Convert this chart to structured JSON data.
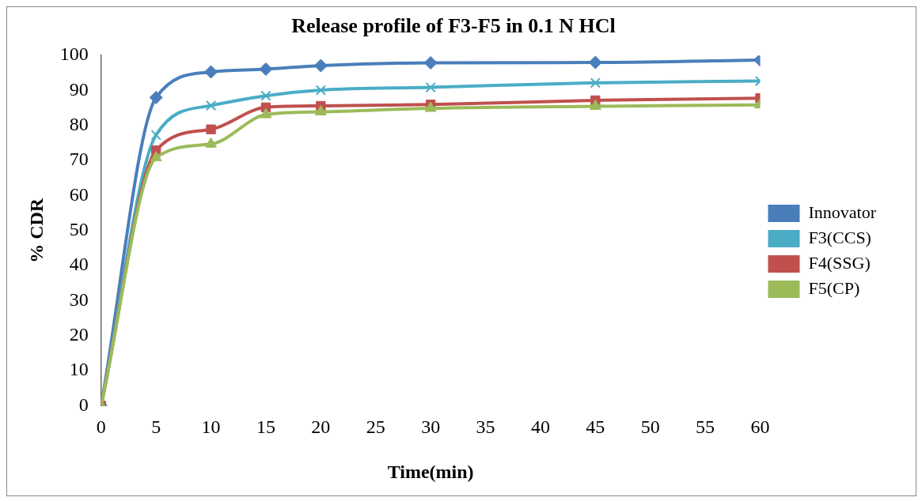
{
  "chart_data": {
    "type": "line",
    "title": "Release profile of F3-F5 in 0.1 N HCl",
    "xlabel": "Time(min)",
    "ylabel": "% CDR",
    "x": [
      0,
      5,
      10,
      15,
      20,
      30,
      45,
      60
    ],
    "series": [
      {
        "name": "Innovator",
        "color": "#4a7ebb",
        "marker": "diamond",
        "values": [
          0,
          88,
          95.3,
          96.1,
          97.1,
          97.9,
          98,
          98.7
        ]
      },
      {
        "name": "F3(CCS)",
        "color": "#4bacc6",
        "marker": "cross",
        "values": [
          0,
          77.3,
          85.7,
          88.5,
          90.1,
          90.9,
          92.2,
          92.7
        ]
      },
      {
        "name": "F4(SSG)",
        "color": "#c0504d",
        "marker": "square",
        "values": [
          0,
          72.9,
          78.9,
          85.2,
          85.6,
          86,
          87.2,
          87.8
        ]
      },
      {
        "name": "F5(CP)",
        "color": "#9bbb59",
        "marker": "triangle",
        "values": [
          0,
          70.8,
          74.7,
          83.1,
          83.9,
          84.9,
          85.5,
          85.9
        ]
      }
    ],
    "xlim": [
      0,
      60
    ],
    "xticks": [
      0,
      5,
      10,
      15,
      20,
      25,
      30,
      35,
      40,
      45,
      50,
      55,
      60
    ],
    "ylim": [
      0,
      100
    ],
    "yticks": [
      0,
      10,
      20,
      30,
      40,
      50,
      60,
      70,
      80,
      90,
      100
    ],
    "grid": false,
    "legend": "right"
  }
}
